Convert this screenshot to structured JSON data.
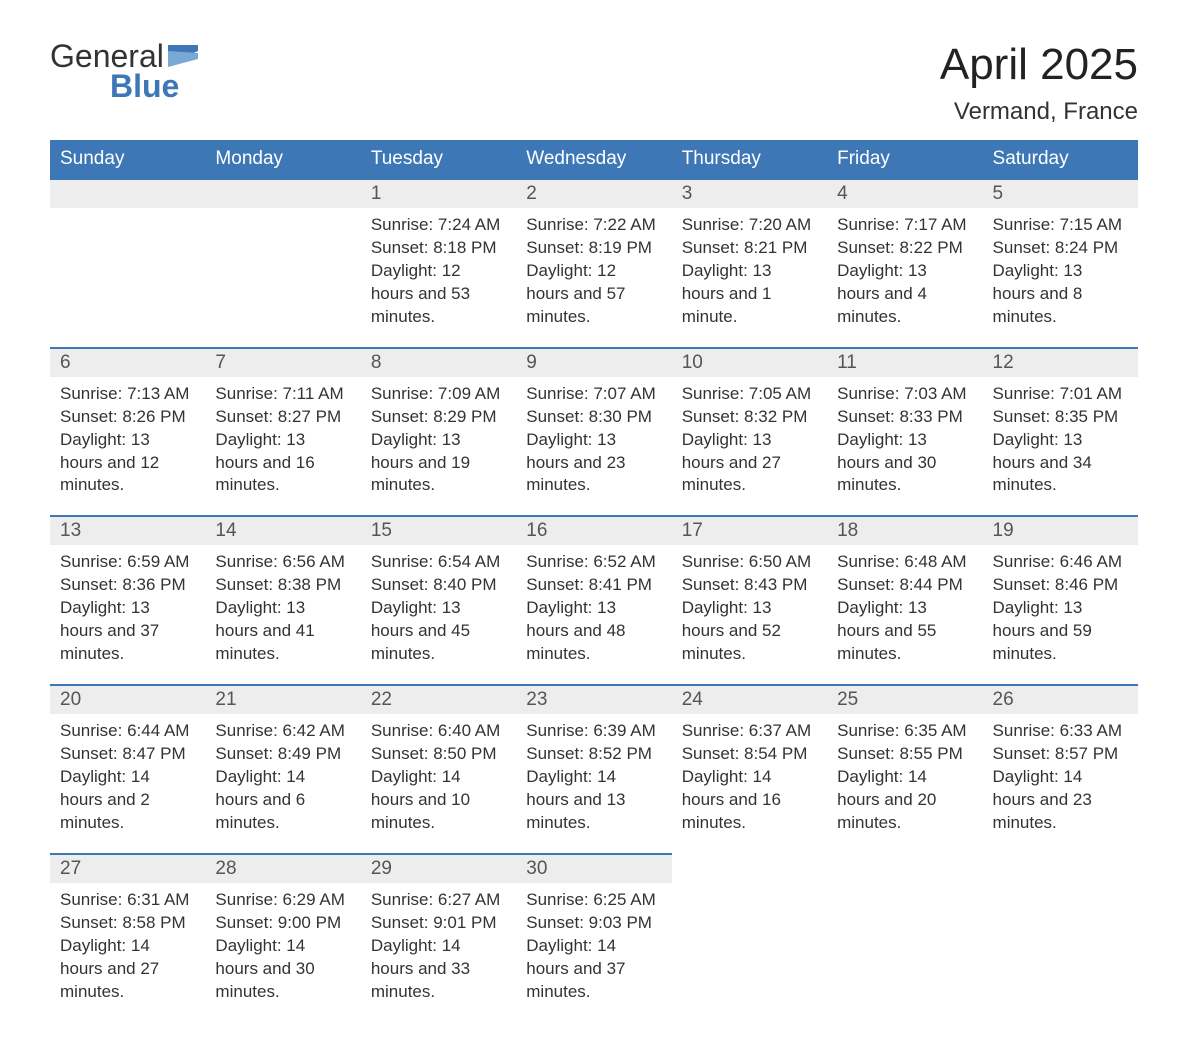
{
  "logo": {
    "word1": "General",
    "word2": "Blue",
    "brand_color": "#3d77b6"
  },
  "title": "April 2025",
  "location": "Vermand, France",
  "colors": {
    "header_bg": "#3d77b6",
    "header_text": "#ffffff",
    "daynum_bg": "#ededed",
    "row_border": "#3d77b6",
    "text": "#333333"
  },
  "day_headers": [
    "Sunday",
    "Monday",
    "Tuesday",
    "Wednesday",
    "Thursday",
    "Friday",
    "Saturday"
  ],
  "weeks": [
    [
      null,
      null,
      {
        "n": "1",
        "sunrise": "7:24 AM",
        "sunset": "8:18 PM",
        "daylight": "12 hours and 53 minutes."
      },
      {
        "n": "2",
        "sunrise": "7:22 AM",
        "sunset": "8:19 PM",
        "daylight": "12 hours and 57 minutes."
      },
      {
        "n": "3",
        "sunrise": "7:20 AM",
        "sunset": "8:21 PM",
        "daylight": "13 hours and 1 minute."
      },
      {
        "n": "4",
        "sunrise": "7:17 AM",
        "sunset": "8:22 PM",
        "daylight": "13 hours and 4 minutes."
      },
      {
        "n": "5",
        "sunrise": "7:15 AM",
        "sunset": "8:24 PM",
        "daylight": "13 hours and 8 minutes."
      }
    ],
    [
      {
        "n": "6",
        "sunrise": "7:13 AM",
        "sunset": "8:26 PM",
        "daylight": "13 hours and 12 minutes."
      },
      {
        "n": "7",
        "sunrise": "7:11 AM",
        "sunset": "8:27 PM",
        "daylight": "13 hours and 16 minutes."
      },
      {
        "n": "8",
        "sunrise": "7:09 AM",
        "sunset": "8:29 PM",
        "daylight": "13 hours and 19 minutes."
      },
      {
        "n": "9",
        "sunrise": "7:07 AM",
        "sunset": "8:30 PM",
        "daylight": "13 hours and 23 minutes."
      },
      {
        "n": "10",
        "sunrise": "7:05 AM",
        "sunset": "8:32 PM",
        "daylight": "13 hours and 27 minutes."
      },
      {
        "n": "11",
        "sunrise": "7:03 AM",
        "sunset": "8:33 PM",
        "daylight": "13 hours and 30 minutes."
      },
      {
        "n": "12",
        "sunrise": "7:01 AM",
        "sunset": "8:35 PM",
        "daylight": "13 hours and 34 minutes."
      }
    ],
    [
      {
        "n": "13",
        "sunrise": "6:59 AM",
        "sunset": "8:36 PM",
        "daylight": "13 hours and 37 minutes."
      },
      {
        "n": "14",
        "sunrise": "6:56 AM",
        "sunset": "8:38 PM",
        "daylight": "13 hours and 41 minutes."
      },
      {
        "n": "15",
        "sunrise": "6:54 AM",
        "sunset": "8:40 PM",
        "daylight": "13 hours and 45 minutes."
      },
      {
        "n": "16",
        "sunrise": "6:52 AM",
        "sunset": "8:41 PM",
        "daylight": "13 hours and 48 minutes."
      },
      {
        "n": "17",
        "sunrise": "6:50 AM",
        "sunset": "8:43 PM",
        "daylight": "13 hours and 52 minutes."
      },
      {
        "n": "18",
        "sunrise": "6:48 AM",
        "sunset": "8:44 PM",
        "daylight": "13 hours and 55 minutes."
      },
      {
        "n": "19",
        "sunrise": "6:46 AM",
        "sunset": "8:46 PM",
        "daylight": "13 hours and 59 minutes."
      }
    ],
    [
      {
        "n": "20",
        "sunrise": "6:44 AM",
        "sunset": "8:47 PM",
        "daylight": "14 hours and 2 minutes."
      },
      {
        "n": "21",
        "sunrise": "6:42 AM",
        "sunset": "8:49 PM",
        "daylight": "14 hours and 6 minutes."
      },
      {
        "n": "22",
        "sunrise": "6:40 AM",
        "sunset": "8:50 PM",
        "daylight": "14 hours and 10 minutes."
      },
      {
        "n": "23",
        "sunrise": "6:39 AM",
        "sunset": "8:52 PM",
        "daylight": "14 hours and 13 minutes."
      },
      {
        "n": "24",
        "sunrise": "6:37 AM",
        "sunset": "8:54 PM",
        "daylight": "14 hours and 16 minutes."
      },
      {
        "n": "25",
        "sunrise": "6:35 AM",
        "sunset": "8:55 PM",
        "daylight": "14 hours and 20 minutes."
      },
      {
        "n": "26",
        "sunrise": "6:33 AM",
        "sunset": "8:57 PM",
        "daylight": "14 hours and 23 minutes."
      }
    ],
    [
      {
        "n": "27",
        "sunrise": "6:31 AM",
        "sunset": "8:58 PM",
        "daylight": "14 hours and 27 minutes."
      },
      {
        "n": "28",
        "sunrise": "6:29 AM",
        "sunset": "9:00 PM",
        "daylight": "14 hours and 30 minutes."
      },
      {
        "n": "29",
        "sunrise": "6:27 AM",
        "sunset": "9:01 PM",
        "daylight": "14 hours and 33 minutes."
      },
      {
        "n": "30",
        "sunrise": "6:25 AM",
        "sunset": "9:03 PM",
        "daylight": "14 hours and 37 minutes."
      },
      null,
      null,
      null
    ]
  ],
  "labels": {
    "sunrise": "Sunrise:",
    "sunset": "Sunset:",
    "daylight": "Daylight:"
  }
}
